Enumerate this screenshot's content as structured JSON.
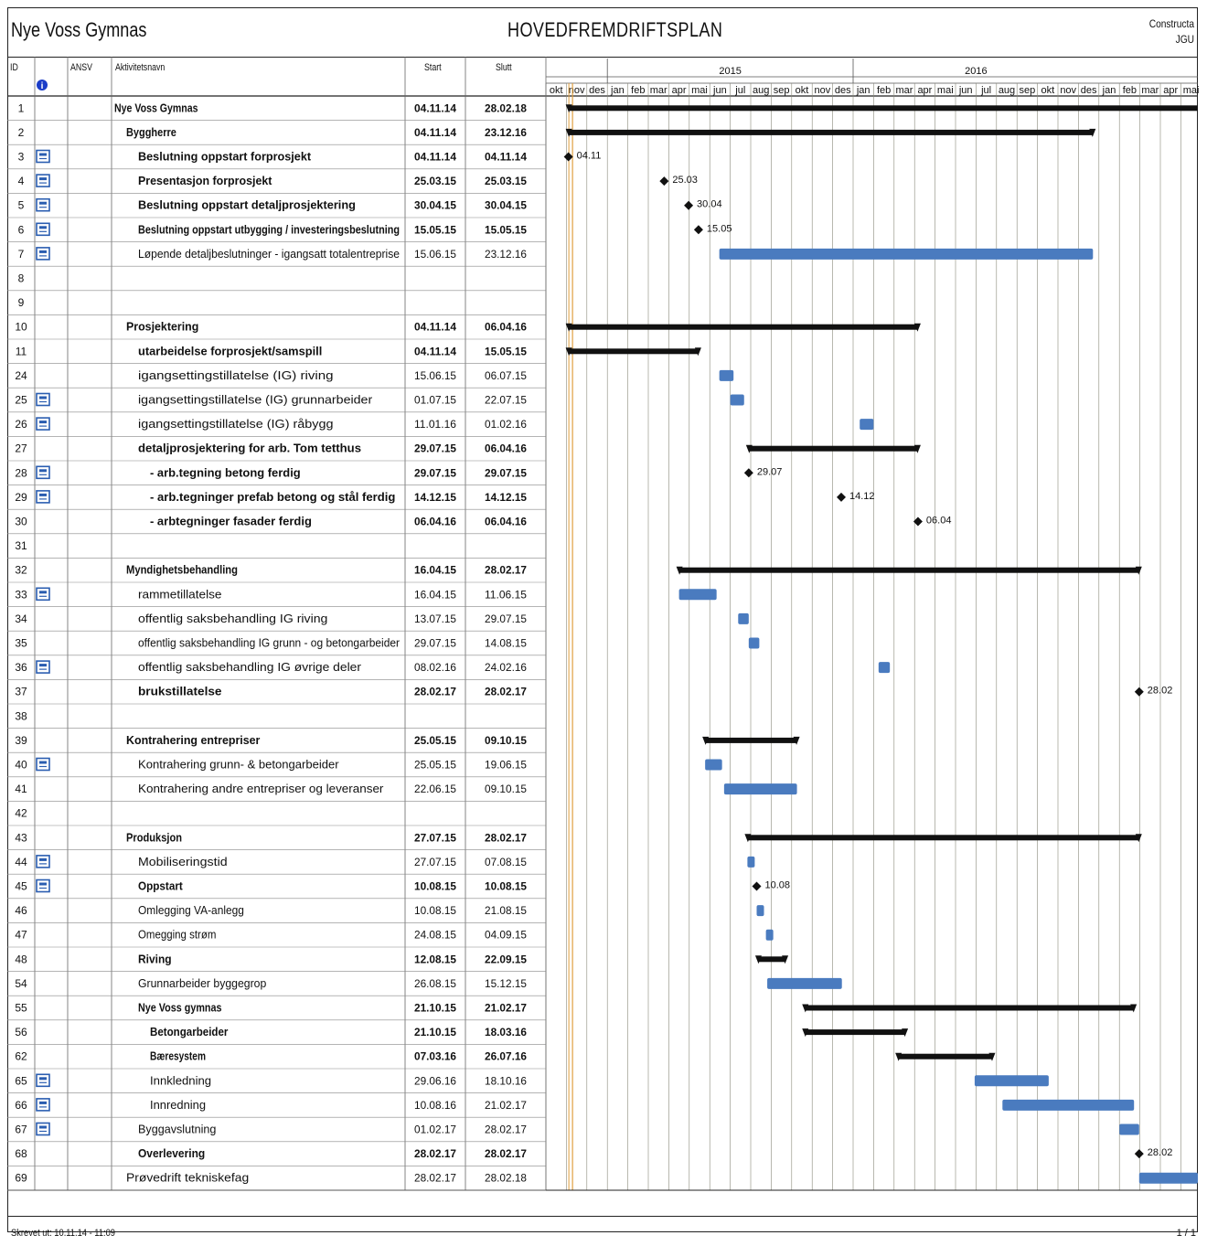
{
  "header": {
    "project_name": "Nye Voss Gymnas",
    "plan_title": "HOVEDFREMDRIFTSPLAN",
    "brand_line1": "Constructa",
    "brand_line2": "JGU"
  },
  "columns": {
    "id": "ID",
    "ansv": "ANSV",
    "name": "Aktivitetsnavn",
    "start": "Start",
    "end": "Slutt",
    "info_icon": "info-icon"
  },
  "timeline": {
    "years": [
      "2015",
      "2016"
    ],
    "months": [
      "okt",
      "nov",
      "des",
      "jan",
      "feb",
      "mar",
      "apr",
      "mai",
      "jun",
      "jul",
      "aug",
      "sep",
      "okt",
      "nov",
      "des",
      "jan",
      "feb",
      "mar",
      "apr",
      "mai",
      "jun",
      "jul",
      "aug",
      "sep",
      "okt",
      "nov",
      "des",
      "jan",
      "feb",
      "mar",
      "apr",
      "mai"
    ],
    "first_month": "2014-10",
    "today_line": "2014-11-10",
    "colors": {
      "summary": "#111111",
      "task": "#4a7bbf",
      "milestone": "#111111",
      "grid": "#8a8a7a",
      "today": "#e0a040"
    }
  },
  "rows": [
    {
      "id": "1",
      "name": "Nye Voss Gymnas",
      "start": "04.11.14",
      "end": "28.02.18",
      "indent": 0,
      "bold": true,
      "type": "summary",
      "icon": false
    },
    {
      "id": "2",
      "name": "Byggherre",
      "start": "04.11.14",
      "end": "23.12.16",
      "indent": 1,
      "bold": true,
      "type": "summary",
      "icon": false
    },
    {
      "id": "3",
      "name": "Beslutning oppstart forprosjekt",
      "start": "04.11.14",
      "end": "04.11.14",
      "indent": 2,
      "bold": true,
      "type": "milestone",
      "label": "04.11",
      "icon": true
    },
    {
      "id": "4",
      "name": "Presentasjon forprosjekt",
      "start": "25.03.15",
      "end": "25.03.15",
      "indent": 2,
      "bold": true,
      "type": "milestone",
      "label": "25.03",
      "icon": true
    },
    {
      "id": "5",
      "name": "Beslutning oppstart detaljprosjektering",
      "start": "30.04.15",
      "end": "30.04.15",
      "indent": 2,
      "bold": true,
      "type": "milestone",
      "label": "30.04",
      "icon": true
    },
    {
      "id": "6",
      "name": "Beslutning oppstart utbygging / investeringsbeslutning",
      "start": "15.05.15",
      "end": "15.05.15",
      "indent": 2,
      "bold": true,
      "type": "milestone",
      "label": "15.05",
      "icon": true
    },
    {
      "id": "7",
      "name": "Løpende detaljbeslutninger - igangsatt totalentreprise",
      "start": "15.06.15",
      "end": "23.12.16",
      "indent": 2,
      "bold": false,
      "type": "task",
      "icon": true
    },
    {
      "id": "8",
      "name": "",
      "start": "",
      "end": "",
      "indent": 0,
      "bold": false,
      "type": "empty",
      "icon": false
    },
    {
      "id": "9",
      "name": "",
      "start": "",
      "end": "",
      "indent": 0,
      "bold": false,
      "type": "empty",
      "icon": false
    },
    {
      "id": "10",
      "name": "Prosjektering",
      "start": "04.11.14",
      "end": "06.04.16",
      "indent": 1,
      "bold": true,
      "type": "summary",
      "icon": false
    },
    {
      "id": "11",
      "name": "utarbeidelse forprosjekt/samspill",
      "start": "04.11.14",
      "end": "15.05.15",
      "indent": 2,
      "bold": true,
      "type": "summary",
      "icon": false
    },
    {
      "id": "24",
      "name": "igangsettingstillatelse (IG) riving",
      "start": "15.06.15",
      "end": "06.07.15",
      "indent": 2,
      "bold": false,
      "type": "task",
      "icon": false
    },
    {
      "id": "25",
      "name": "igangsettingstillatelse (IG) grunnarbeider",
      "start": "01.07.15",
      "end": "22.07.15",
      "indent": 2,
      "bold": false,
      "type": "task",
      "icon": true
    },
    {
      "id": "26",
      "name": "igangsettingstillatelse (IG) råbygg",
      "start": "11.01.16",
      "end": "01.02.16",
      "indent": 2,
      "bold": false,
      "type": "task",
      "icon": true
    },
    {
      "id": "27",
      "name": "detaljprosjektering for arb. Tom tetthus",
      "start": "29.07.15",
      "end": "06.04.16",
      "indent": 2,
      "bold": true,
      "type": "summary",
      "icon": false
    },
    {
      "id": "28",
      "name": "- arb.tegning betong ferdig",
      "start": "29.07.15",
      "end": "29.07.15",
      "indent": 3,
      "bold": true,
      "type": "milestone",
      "label": "29.07",
      "icon": true
    },
    {
      "id": "29",
      "name": "- arb.tegninger prefab betong og stål ferdig",
      "start": "14.12.15",
      "end": "14.12.15",
      "indent": 3,
      "bold": true,
      "type": "milestone",
      "label": "14.12",
      "icon": true
    },
    {
      "id": "30",
      "name": "- arbtegninger fasader ferdig",
      "start": "06.04.16",
      "end": "06.04.16",
      "indent": 3,
      "bold": true,
      "type": "milestone",
      "label": "06.04",
      "icon": false
    },
    {
      "id": "31",
      "name": "",
      "start": "",
      "end": "",
      "indent": 0,
      "bold": false,
      "type": "empty",
      "icon": false
    },
    {
      "id": "32",
      "name": "Myndighetsbehandling",
      "start": "16.04.15",
      "end": "28.02.17",
      "indent": 1,
      "bold": true,
      "type": "summary",
      "icon": false
    },
    {
      "id": "33",
      "name": "rammetillatelse",
      "start": "16.04.15",
      "end": "11.06.15",
      "indent": 2,
      "bold": false,
      "type": "task",
      "icon": true
    },
    {
      "id": "34",
      "name": "offentlig saksbehandling IG riving",
      "start": "13.07.15",
      "end": "29.07.15",
      "indent": 2,
      "bold": false,
      "type": "task",
      "icon": false
    },
    {
      "id": "35",
      "name": "offentlig saksbehandling IG grunn - og betongarbeider",
      "start": "29.07.15",
      "end": "14.08.15",
      "indent": 2,
      "bold": false,
      "type": "task",
      "icon": false
    },
    {
      "id": "36",
      "name": "offentlig saksbehandling IG øvrige deler",
      "start": "08.02.16",
      "end": "24.02.16",
      "indent": 2,
      "bold": false,
      "type": "task",
      "icon": true
    },
    {
      "id": "37",
      "name": "brukstillatelse",
      "start": "28.02.17",
      "end": "28.02.17",
      "indent": 2,
      "bold": true,
      "type": "milestone",
      "label": "28.02",
      "icon": false
    },
    {
      "id": "38",
      "name": "",
      "start": "",
      "end": "",
      "indent": 0,
      "bold": false,
      "type": "empty",
      "icon": false
    },
    {
      "id": "39",
      "name": "Kontrahering entrepriser",
      "start": "25.05.15",
      "end": "09.10.15",
      "indent": 1,
      "bold": true,
      "type": "summary",
      "icon": false
    },
    {
      "id": "40",
      "name": "Kontrahering grunn- & betongarbeider",
      "start": "25.05.15",
      "end": "19.06.15",
      "indent": 2,
      "bold": false,
      "type": "task",
      "icon": true
    },
    {
      "id": "41",
      "name": "Kontrahering andre entrepriser og leveranser",
      "start": "22.06.15",
      "end": "09.10.15",
      "indent": 2,
      "bold": false,
      "type": "task",
      "icon": false
    },
    {
      "id": "42",
      "name": "",
      "start": "",
      "end": "",
      "indent": 0,
      "bold": false,
      "type": "empty",
      "icon": false
    },
    {
      "id": "43",
      "name": "Produksjon",
      "start": "27.07.15",
      "end": "28.02.17",
      "indent": 1,
      "bold": true,
      "type": "summary",
      "icon": false
    },
    {
      "id": "44",
      "name": "Mobiliseringstid",
      "start": "27.07.15",
      "end": "07.08.15",
      "indent": 2,
      "bold": false,
      "type": "task",
      "icon": true
    },
    {
      "id": "45",
      "name": "Oppstart",
      "start": "10.08.15",
      "end": "10.08.15",
      "indent": 2,
      "bold": true,
      "type": "milestone",
      "label": "10.08",
      "icon": true
    },
    {
      "id": "46",
      "name": "Omlegging VA-anlegg",
      "start": "10.08.15",
      "end": "21.08.15",
      "indent": 2,
      "bold": false,
      "type": "task",
      "icon": false
    },
    {
      "id": "47",
      "name": "Omegging strøm",
      "start": "24.08.15",
      "end": "04.09.15",
      "indent": 2,
      "bold": false,
      "type": "task",
      "icon": false
    },
    {
      "id": "48",
      "name": "Riving",
      "start": "12.08.15",
      "end": "22.09.15",
      "indent": 2,
      "bold": true,
      "type": "summary",
      "icon": false
    },
    {
      "id": "54",
      "name": "Grunnarbeider byggegrop",
      "start": "26.08.15",
      "end": "15.12.15",
      "indent": 2,
      "bold": false,
      "type": "task",
      "icon": false
    },
    {
      "id": "55",
      "name": "Nye Voss gymnas",
      "start": "21.10.15",
      "end": "21.02.17",
      "indent": 2,
      "bold": true,
      "type": "summary",
      "icon": false
    },
    {
      "id": "56",
      "name": "Betongarbeider",
      "start": "21.10.15",
      "end": "18.03.16",
      "indent": 3,
      "bold": true,
      "type": "summary",
      "icon": false
    },
    {
      "id": "62",
      "name": "Bæresystem",
      "start": "07.03.16",
      "end": "26.07.16",
      "indent": 3,
      "bold": true,
      "type": "summary",
      "icon": false
    },
    {
      "id": "65",
      "name": "Innkledning",
      "start": "29.06.16",
      "end": "18.10.16",
      "indent": 3,
      "bold": false,
      "type": "task",
      "icon": true
    },
    {
      "id": "66",
      "name": "Innredning",
      "start": "10.08.16",
      "end": "21.02.17",
      "indent": 3,
      "bold": false,
      "type": "task",
      "icon": true
    },
    {
      "id": "67",
      "name": "Byggavslutning",
      "start": "01.02.17",
      "end": "28.02.17",
      "indent": 2,
      "bold": false,
      "type": "task",
      "icon": true
    },
    {
      "id": "68",
      "name": "Overlevering",
      "start": "28.02.17",
      "end": "28.02.17",
      "indent": 2,
      "bold": true,
      "type": "milestone",
      "label": "28.02",
      "icon": false
    },
    {
      "id": "69",
      "name": "Prøvedrift tekniskefag",
      "start": "28.02.17",
      "end": "28.02.18",
      "indent": 1,
      "bold": false,
      "type": "task",
      "icon": false
    }
  ],
  "footer": {
    "printed": "Skrevet ut: 10.11.14 - 11:09",
    "page": "1 / 1"
  }
}
